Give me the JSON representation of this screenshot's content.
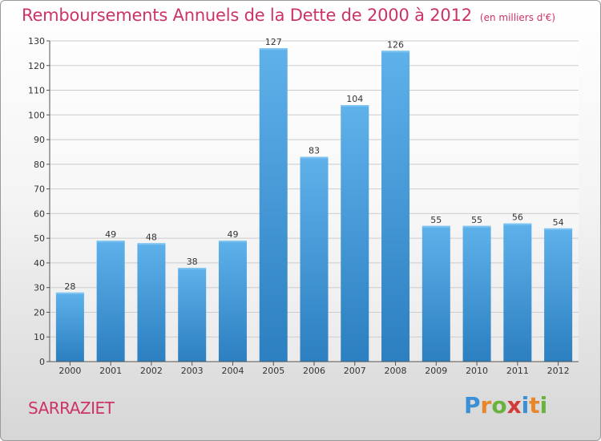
{
  "title": "Remboursements Annuels de la Dette de 2000 à 2012",
  "unit_note": "(en milliers d'€)",
  "commune": "SARRAZIET",
  "logo": {
    "letters": [
      "P",
      "r",
      "o",
      "x",
      "i",
      "t",
      "i"
    ],
    "colors": [
      "#3a8fd6",
      "#e8862a",
      "#6ab23e",
      "#d23a3a",
      "#3a8fd6",
      "#e8862a",
      "#6ab23e"
    ]
  },
  "colors": {
    "title": "#cc3366",
    "bar_top": "#5eb1ea",
    "bar_bottom": "#2c7fc0",
    "grid": "#cccccc",
    "axis": "#555555"
  },
  "chart_data": {
    "type": "bar",
    "categories": [
      "2000",
      "2001",
      "2002",
      "2003",
      "2004",
      "2005",
      "2006",
      "2007",
      "2008",
      "2009",
      "2010",
      "2011",
      "2012"
    ],
    "values": [
      28,
      49,
      48,
      38,
      49,
      127,
      83,
      104,
      126,
      55,
      55,
      56,
      54
    ],
    "ylim": [
      0,
      130
    ],
    "yticks": [
      0,
      10,
      20,
      30,
      40,
      50,
      60,
      70,
      80,
      90,
      100,
      110,
      120,
      130
    ],
    "grid": true,
    "xlabel": "",
    "ylabel": ""
  }
}
